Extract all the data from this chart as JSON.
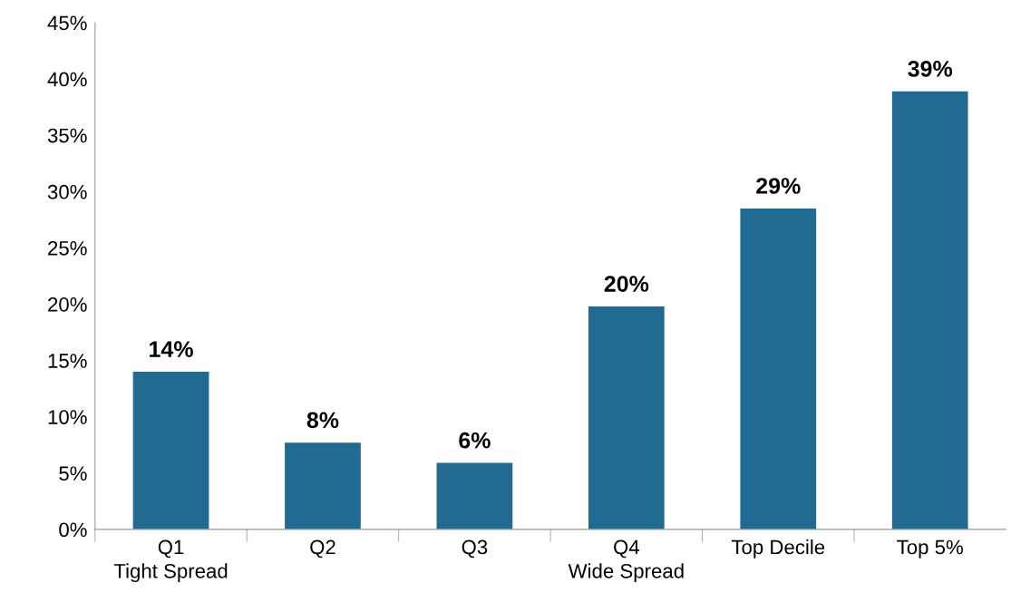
{
  "chart_data": {
    "type": "bar",
    "categories": [
      "Q1\nTight Spread",
      "Q2",
      "Q3",
      "Q4\nWide Spread",
      "Top Decile",
      "Top 5%"
    ],
    "values": [
      14,
      7.7,
      5.9,
      19.8,
      28.5,
      38.9
    ],
    "value_labels": [
      "14%",
      "8%",
      "6%",
      "20%",
      "29%",
      "39%"
    ],
    "color": "#216a92",
    "ylim": [
      0,
      45
    ],
    "yticks": [
      {
        "value": 0,
        "label": "0%"
      },
      {
        "value": 5,
        "label": "5%"
      },
      {
        "value": 10,
        "label": "10%"
      },
      {
        "value": 15,
        "label": "15%"
      },
      {
        "value": 20,
        "label": "20%"
      },
      {
        "value": 25,
        "label": "25%"
      },
      {
        "value": 30,
        "label": "30%"
      },
      {
        "value": 35,
        "label": "35%"
      },
      {
        "value": 40,
        "label": "40%"
      },
      {
        "value": 45,
        "label": "45%"
      }
    ]
  }
}
